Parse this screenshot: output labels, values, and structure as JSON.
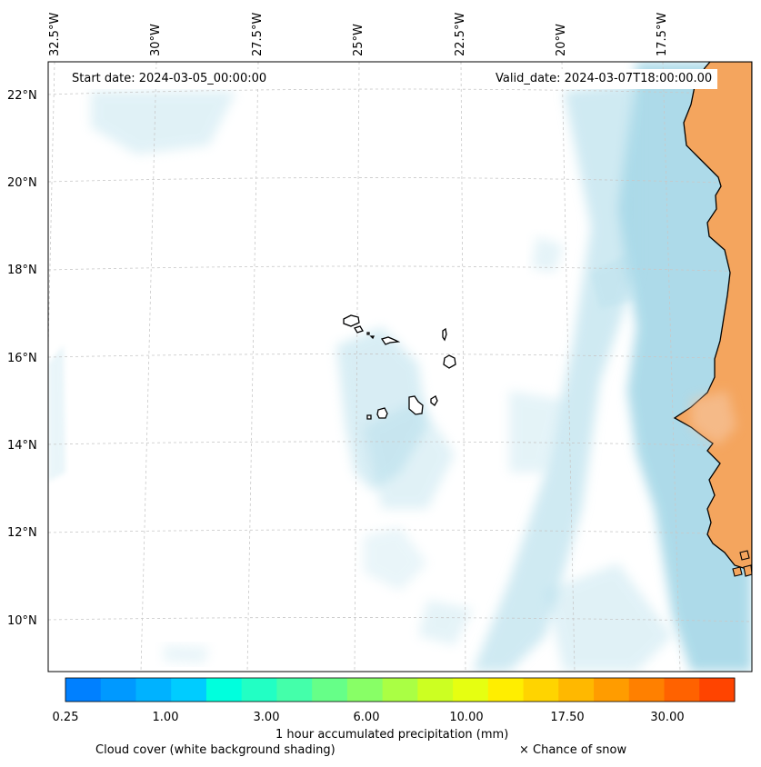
{
  "map": {
    "start_date_label": "Start date: 2024-03-05_00:00:00",
    "valid_date_label": "Valid_date: 2024-03-07T18:00:00.00",
    "longitude_labels": [
      "32.5°W",
      "30°W",
      "27.5°W",
      "25°W",
      "22.5°W",
      "20°W",
      "17.5°W"
    ],
    "latitude_labels": [
      "22°N",
      "20°N",
      "18°N",
      "16°N",
      "14°N",
      "12°N",
      "10°N"
    ],
    "land_color": "#f4a55e",
    "cloud_color": "#a9d9e8",
    "ocean_color": "#ffffff"
  },
  "colorbar": {
    "title": "1 hour accumulated precipitation (mm)",
    "tick_labels": [
      "0.25",
      "1.00",
      "3.00",
      "6.00",
      "10.00",
      "17.50",
      "30.00"
    ],
    "colors": [
      "#0080ff",
      "#0099ff",
      "#00b2ff",
      "#00ccff",
      "#00ffdd",
      "#22ffc4",
      "#44ffaa",
      "#66ff88",
      "#88ff66",
      "#aaff44",
      "#ccff22",
      "#e6ff11",
      "#ffee00",
      "#ffd400",
      "#ffb800",
      "#ff9c00",
      "#ff8000",
      "#ff6200",
      "#ff4400"
    ]
  },
  "footer": {
    "cloud_label": "Cloud cover (white background shading)",
    "snow_label": "× Chance of snow"
  }
}
